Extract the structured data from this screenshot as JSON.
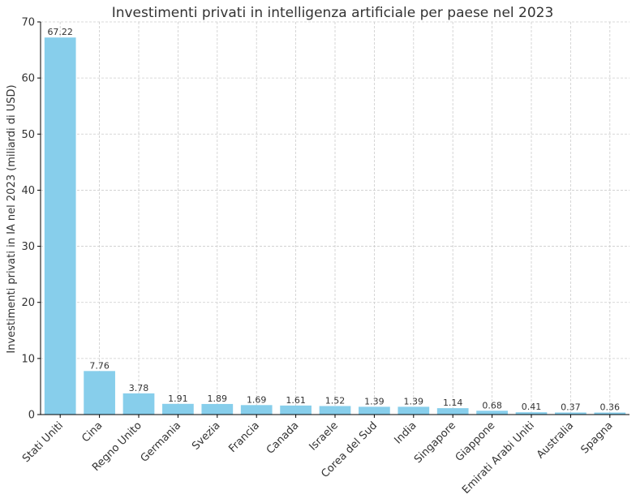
{
  "chart_data": {
    "type": "bar",
    "title": "Investimenti privati in intelligenza artificiale per paese nel 2023",
    "xlabel": "",
    "ylabel": "Investimenti privati in IA nel 2023 (miliardi di USD)",
    "categories": [
      "Stati Uniti",
      "Cina",
      "Regno Unito",
      "Germania",
      "Svezia",
      "Francia",
      "Canada",
      "Israele",
      "Corea del Sud",
      "India",
      "Singapore",
      "Giappone",
      "Emirati Arabi Uniti",
      "Australia",
      "Spagna"
    ],
    "values": [
      67.22,
      7.76,
      3.78,
      1.91,
      1.89,
      1.69,
      1.61,
      1.52,
      1.39,
      1.39,
      1.14,
      0.68,
      0.41,
      0.37,
      0.36
    ],
    "value_labels": [
      "67.22",
      "7.76",
      "3.78",
      "1.91",
      "1.89",
      "1.69",
      "1.61",
      "1.52",
      "1.39",
      "1.39",
      "1.14",
      "0.68",
      "0.41",
      "0.37",
      "0.36"
    ],
    "ylim": [
      0,
      70
    ],
    "yticks": [
      0,
      10,
      20,
      30,
      40,
      50,
      60,
      70
    ],
    "grid": true,
    "bar_color": "#87ceeb"
  }
}
